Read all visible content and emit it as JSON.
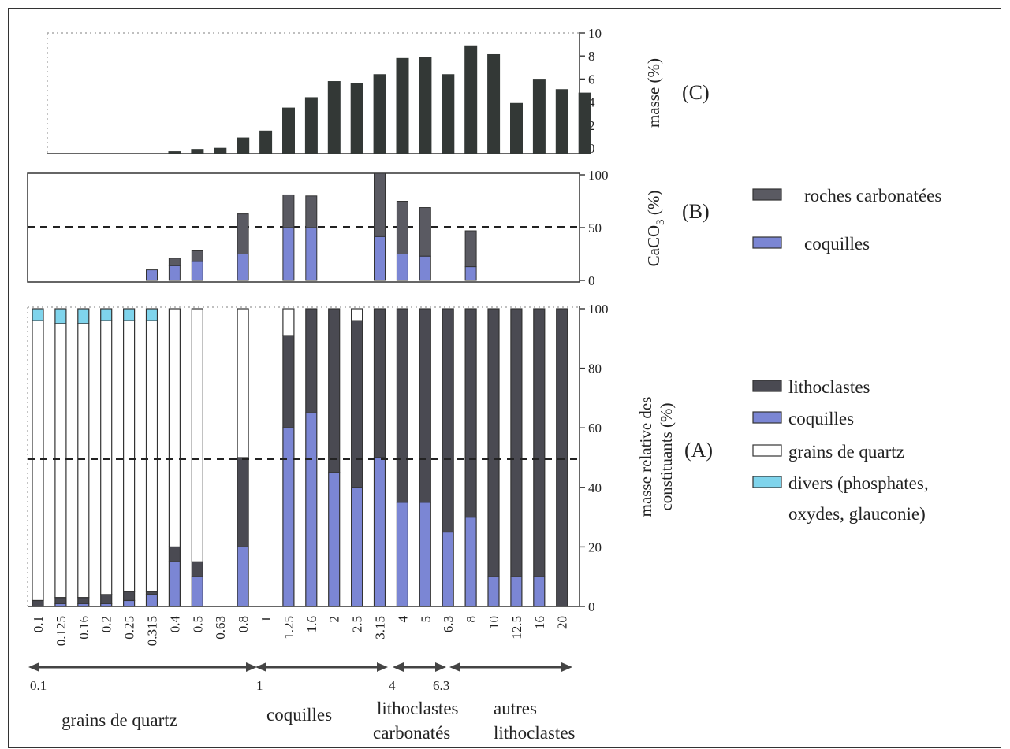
{
  "colors": {
    "lithoclastes": "#4a4a52",
    "coquilles": "#7b86d4",
    "quartz": "#ffffff",
    "divers": "#7fd4ec",
    "roches_carbonatees": "#5a5a62",
    "mass": "#333836"
  },
  "panel_labels": {
    "c": "(C)",
    "b": "(B)",
    "a": "(A)"
  },
  "legend_top": {
    "roches": "roches carbonatées",
    "coquilles": "coquilles"
  },
  "legend_bottom": {
    "lithoclastes": "lithoclastes",
    "coquilles": "coquilles",
    "quartz": "grains de quartz",
    "divers_line1": "divers (phosphates,",
    "divers_line2": "oxydes, glauconie)"
  },
  "zones": {
    "quartz": "grains de quartz",
    "coquilles": "coquilles",
    "litho_carb_1": "lithoclastes",
    "litho_carb_2": "carbonatés",
    "autres_1": "autres",
    "autres_2": "lithoclastes"
  },
  "range_labels": [
    "0.1",
    "1",
    "4",
    "6.3"
  ],
  "chart_data": [
    {
      "type": "bar",
      "panel": "C",
      "ylabel": "masse (%)",
      "ylim": [
        0,
        10
      ],
      "yticks": [
        "0",
        "2",
        "4",
        "6",
        "8",
        "10"
      ],
      "categories": [
        "0.1",
        "0.125",
        "0.16",
        "0.2",
        "0.25",
        "0.315",
        "0.4",
        "0.5",
        "0.63",
        "0.8",
        "1",
        "1.25",
        "1.6",
        "2",
        "2.5",
        "3.15",
        "4",
        "5",
        "6.3",
        "8",
        "10",
        "12.5",
        "16",
        "20"
      ],
      "values": [
        0,
        0,
        0,
        0,
        0,
        0.2,
        0.4,
        0.5,
        1.4,
        2,
        4,
        4.9,
        6.3,
        6.1,
        6.9,
        8.3,
        8.4,
        6.9,
        9.4,
        8.7,
        4.4,
        6.5,
        5.6,
        5.3
      ]
    },
    {
      "type": "bar",
      "panel": "B",
      "stacked": true,
      "ylabel": "CaCO3 (%)",
      "ylim": [
        0,
        100
      ],
      "yticks": [
        "0",
        "50",
        "100"
      ],
      "reference_line": 50,
      "categories": [
        "0.1",
        "0.125",
        "0.16",
        "0.2",
        "0.25",
        "0.315",
        "0.4",
        "0.5",
        "0.63",
        "0.8",
        "1",
        "1.25",
        "1.6",
        "2",
        "2.5",
        "3.15",
        "4",
        "5",
        "6.3",
        "8",
        "10",
        "12.5",
        "16",
        "20"
      ],
      "series": [
        {
          "name": "coquilles",
          "values": [
            null,
            null,
            null,
            null,
            null,
            10,
            14,
            18,
            null,
            25,
            null,
            50,
            50,
            null,
            null,
            50,
            25,
            23,
            null,
            13,
            null,
            null,
            null,
            null
          ]
        },
        {
          "name": "roches carbonatées",
          "values": [
            null,
            null,
            null,
            null,
            null,
            0,
            7,
            10,
            null,
            38,
            null,
            31,
            30,
            null,
            null,
            60,
            50,
            46,
            null,
            34,
            null,
            null,
            null,
            null
          ]
        }
      ]
    },
    {
      "type": "bar",
      "panel": "A",
      "stacked": true,
      "ylabel": "masse relative des constituants (%)",
      "ylim": [
        0,
        100
      ],
      "yticks": [
        "0",
        "20",
        "40",
        "60",
        "80",
        "100"
      ],
      "reference_line": 50,
      "categories": [
        "0.1",
        "0.125",
        "0.16",
        "0.2",
        "0.25",
        "0.315",
        "0.4",
        "0.5",
        "0.63",
        "0.8",
        "1",
        "1.25",
        "1.6",
        "2",
        "2.5",
        "3.15",
        "4",
        "5",
        "6.3",
        "8",
        "10",
        "12.5",
        "16",
        "20"
      ],
      "series": [
        {
          "name": "coquilles",
          "values": [
            0,
            1,
            1,
            1,
            2,
            4,
            15,
            10,
            null,
            20,
            null,
            60,
            65,
            45,
            40,
            50,
            35,
            35,
            25,
            30,
            10,
            10,
            10,
            0
          ]
        },
        {
          "name": "lithoclastes",
          "values": [
            2,
            2,
            2,
            3,
            3,
            1,
            5,
            5,
            null,
            30,
            null,
            31,
            35,
            55,
            56,
            50,
            65,
            65,
            75,
            70,
            90,
            90,
            90,
            100
          ]
        },
        {
          "name": "grains de quartz",
          "values": [
            94,
            92,
            92,
            92,
            91,
            91,
            80,
            85,
            null,
            50,
            null,
            9,
            0,
            0,
            4,
            0,
            0,
            0,
            0,
            0,
            0,
            0,
            0,
            0
          ]
        },
        {
          "name": "divers (phosphates, oxydes, glauconie)",
          "values": [
            4,
            5,
            5,
            4,
            4,
            4,
            0,
            0,
            null,
            0,
            null,
            0,
            0,
            0,
            0,
            0,
            0,
            0,
            0,
            0,
            0,
            0,
            0,
            0
          ]
        }
      ]
    }
  ]
}
